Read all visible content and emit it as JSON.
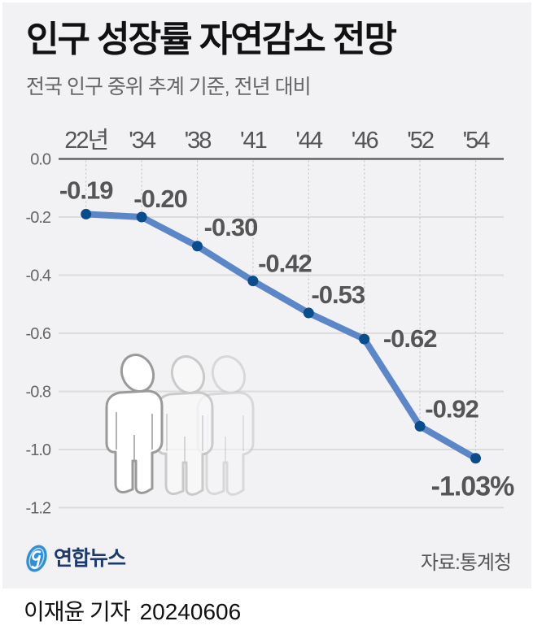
{
  "header": {
    "title": "인구 성장률 자연감소 전망",
    "subtitle": "전국 인구 중위 추계 기준, 전년 대비"
  },
  "chart_data": {
    "type": "line",
    "title": "인구 성장률 자연감소 전망",
    "subtitle": "전국 인구 중위 추계 기준, 전년 대비",
    "xlabel": "",
    "ylabel": "",
    "unit": "%",
    "categories": [
      "22년",
      "'34",
      "'38",
      "'41",
      "'44",
      "'46",
      "'52",
      "'54"
    ],
    "values": [
      -0.19,
      -0.2,
      -0.3,
      -0.42,
      -0.53,
      -0.62,
      -0.92,
      -1.03
    ],
    "data_labels": [
      "-0.19",
      "-0.20",
      "-0.30",
      "-0.42",
      "-0.53",
      "-0.62",
      "-0.92",
      "-1.03%"
    ],
    "yticks": [
      "0.0",
      "-0.2",
      "-0.4",
      "-0.6",
      "-0.8",
      "-1.0",
      "-1.2"
    ],
    "ytick_values": [
      0.0,
      -0.2,
      -0.4,
      -0.6,
      -0.8,
      -1.0,
      -1.2
    ],
    "ylim": [
      -1.2,
      0.0
    ],
    "grid": true,
    "x_axis_position": "top",
    "legend": null,
    "colors": {
      "line": "#5b87c8",
      "marker": "#0a4d8c",
      "label": "#555555",
      "axis": "#555555",
      "grid": "#dcdcdc"
    }
  },
  "decoration": {
    "icon": "people-icon",
    "count": 3
  },
  "footer": {
    "logo_text": "연합뉴스",
    "logo_icon": "yonhap-logo-icon",
    "source": "자료:통계청"
  },
  "byline": {
    "author": "이재윤 기자",
    "date": "20240606"
  }
}
